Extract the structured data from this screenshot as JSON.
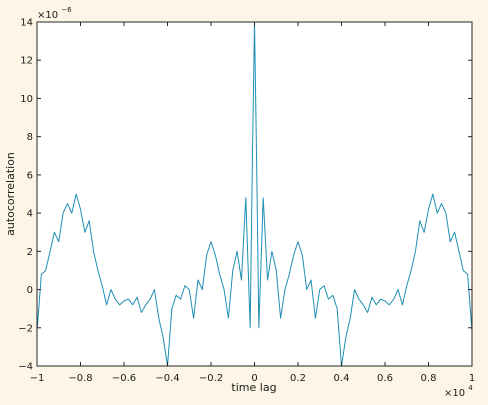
{
  "chart_data": {
    "type": "line",
    "title": "",
    "xlabel": "time lag",
    "ylabel": "autocorrelation",
    "xlim": [
      -1,
      1
    ],
    "ylim": [
      -4,
      14
    ],
    "x_scale_multiplier_label": "×10",
    "x_scale_exponent": "4",
    "y_scale_multiplier_label": "×10",
    "y_scale_exponent": "−6",
    "x_ticks": [
      -1,
      -0.8,
      -0.6,
      -0.4,
      -0.2,
      0,
      0.2,
      0.4,
      0.6,
      0.8,
      1
    ],
    "x_tick_labels": [
      "−1",
      "−0.8",
      "−0.6",
      "−0.4",
      "−0.2",
      "0",
      "0.2",
      "0.4",
      "0.6",
      "0.8",
      "1"
    ],
    "y_ticks": [
      -4,
      -2,
      0,
      2,
      4,
      6,
      8,
      10,
      12,
      14
    ],
    "y_tick_labels": [
      "−4",
      "−2",
      "0",
      "2",
      "4",
      "6",
      "8",
      "10",
      "12",
      "14"
    ],
    "grid": false,
    "line_color": "#1f8fb4",
    "background_color": "#fdf6e6",
    "plot_background_color": "#ffffff",
    "series": [
      {
        "x": [
          -1.0,
          -0.98,
          -0.96,
          -0.94,
          -0.92,
          -0.9,
          -0.88,
          -0.86,
          -0.84,
          -0.82,
          -0.8,
          -0.78,
          -0.76,
          -0.74,
          -0.72,
          -0.7,
          -0.68,
          -0.66,
          -0.64,
          -0.62,
          -0.6,
          -0.58,
          -0.56,
          -0.54,
          -0.52,
          -0.5,
          -0.48,
          -0.46,
          -0.44,
          -0.42,
          -0.4,
          -0.38,
          -0.36,
          -0.34,
          -0.32,
          -0.3,
          -0.28,
          -0.26,
          -0.24,
          -0.22,
          -0.2,
          -0.18,
          -0.16,
          -0.14,
          -0.12,
          -0.1,
          -0.08,
          -0.06,
          -0.04,
          -0.02,
          -0.01,
          0.0,
          0.01,
          0.02,
          0.04,
          0.06,
          0.08,
          0.1,
          0.12,
          0.14,
          0.16,
          0.18,
          0.2,
          0.22,
          0.24,
          0.26,
          0.28,
          0.3,
          0.32,
          0.34,
          0.36,
          0.38,
          0.4,
          0.42,
          0.44,
          0.46,
          0.48,
          0.5,
          0.52,
          0.54,
          0.56,
          0.58,
          0.6,
          0.62,
          0.64,
          0.66,
          0.68,
          0.7,
          0.72,
          0.74,
          0.76,
          0.78,
          0.8,
          0.82,
          0.84,
          0.86,
          0.88,
          0.9,
          0.92,
          0.94,
          0.96,
          0.98,
          1.0
        ],
        "y": [
          -2.2,
          0.8,
          1.0,
          2.0,
          3.0,
          2.5,
          4.0,
          4.5,
          4.0,
          5.0,
          4.2,
          3.0,
          3.6,
          2.0,
          1.0,
          0.2,
          -0.8,
          0.0,
          -0.5,
          -0.8,
          -0.6,
          -0.5,
          -0.8,
          -0.4,
          -1.2,
          -0.8,
          -0.5,
          0.0,
          -1.5,
          -2.5,
          -4.0,
          -1.0,
          -0.3,
          -0.5,
          0.2,
          0.0,
          -1.5,
          0.5,
          0.0,
          1.8,
          2.5,
          1.8,
          0.8,
          0.0,
          -1.5,
          1.0,
          2.0,
          0.5,
          4.8,
          -2.0,
          6.5,
          14.0,
          6.5,
          -2.0,
          4.8,
          0.5,
          2.0,
          1.0,
          -1.5,
          0.0,
          0.8,
          1.8,
          2.5,
          1.8,
          0.0,
          0.5,
          -1.5,
          0.0,
          0.2,
          -0.5,
          -0.3,
          -1.0,
          -4.0,
          -2.5,
          -1.5,
          0.0,
          -0.5,
          -0.8,
          -1.2,
          -0.4,
          -0.8,
          -0.5,
          -0.6,
          -0.8,
          -0.5,
          0.0,
          -0.8,
          0.2,
          1.0,
          2.0,
          3.6,
          3.0,
          4.2,
          5.0,
          4.0,
          4.5,
          4.0,
          2.5,
          3.0,
          2.0,
          1.0,
          0.8,
          -2.2
        ]
      }
    ]
  }
}
